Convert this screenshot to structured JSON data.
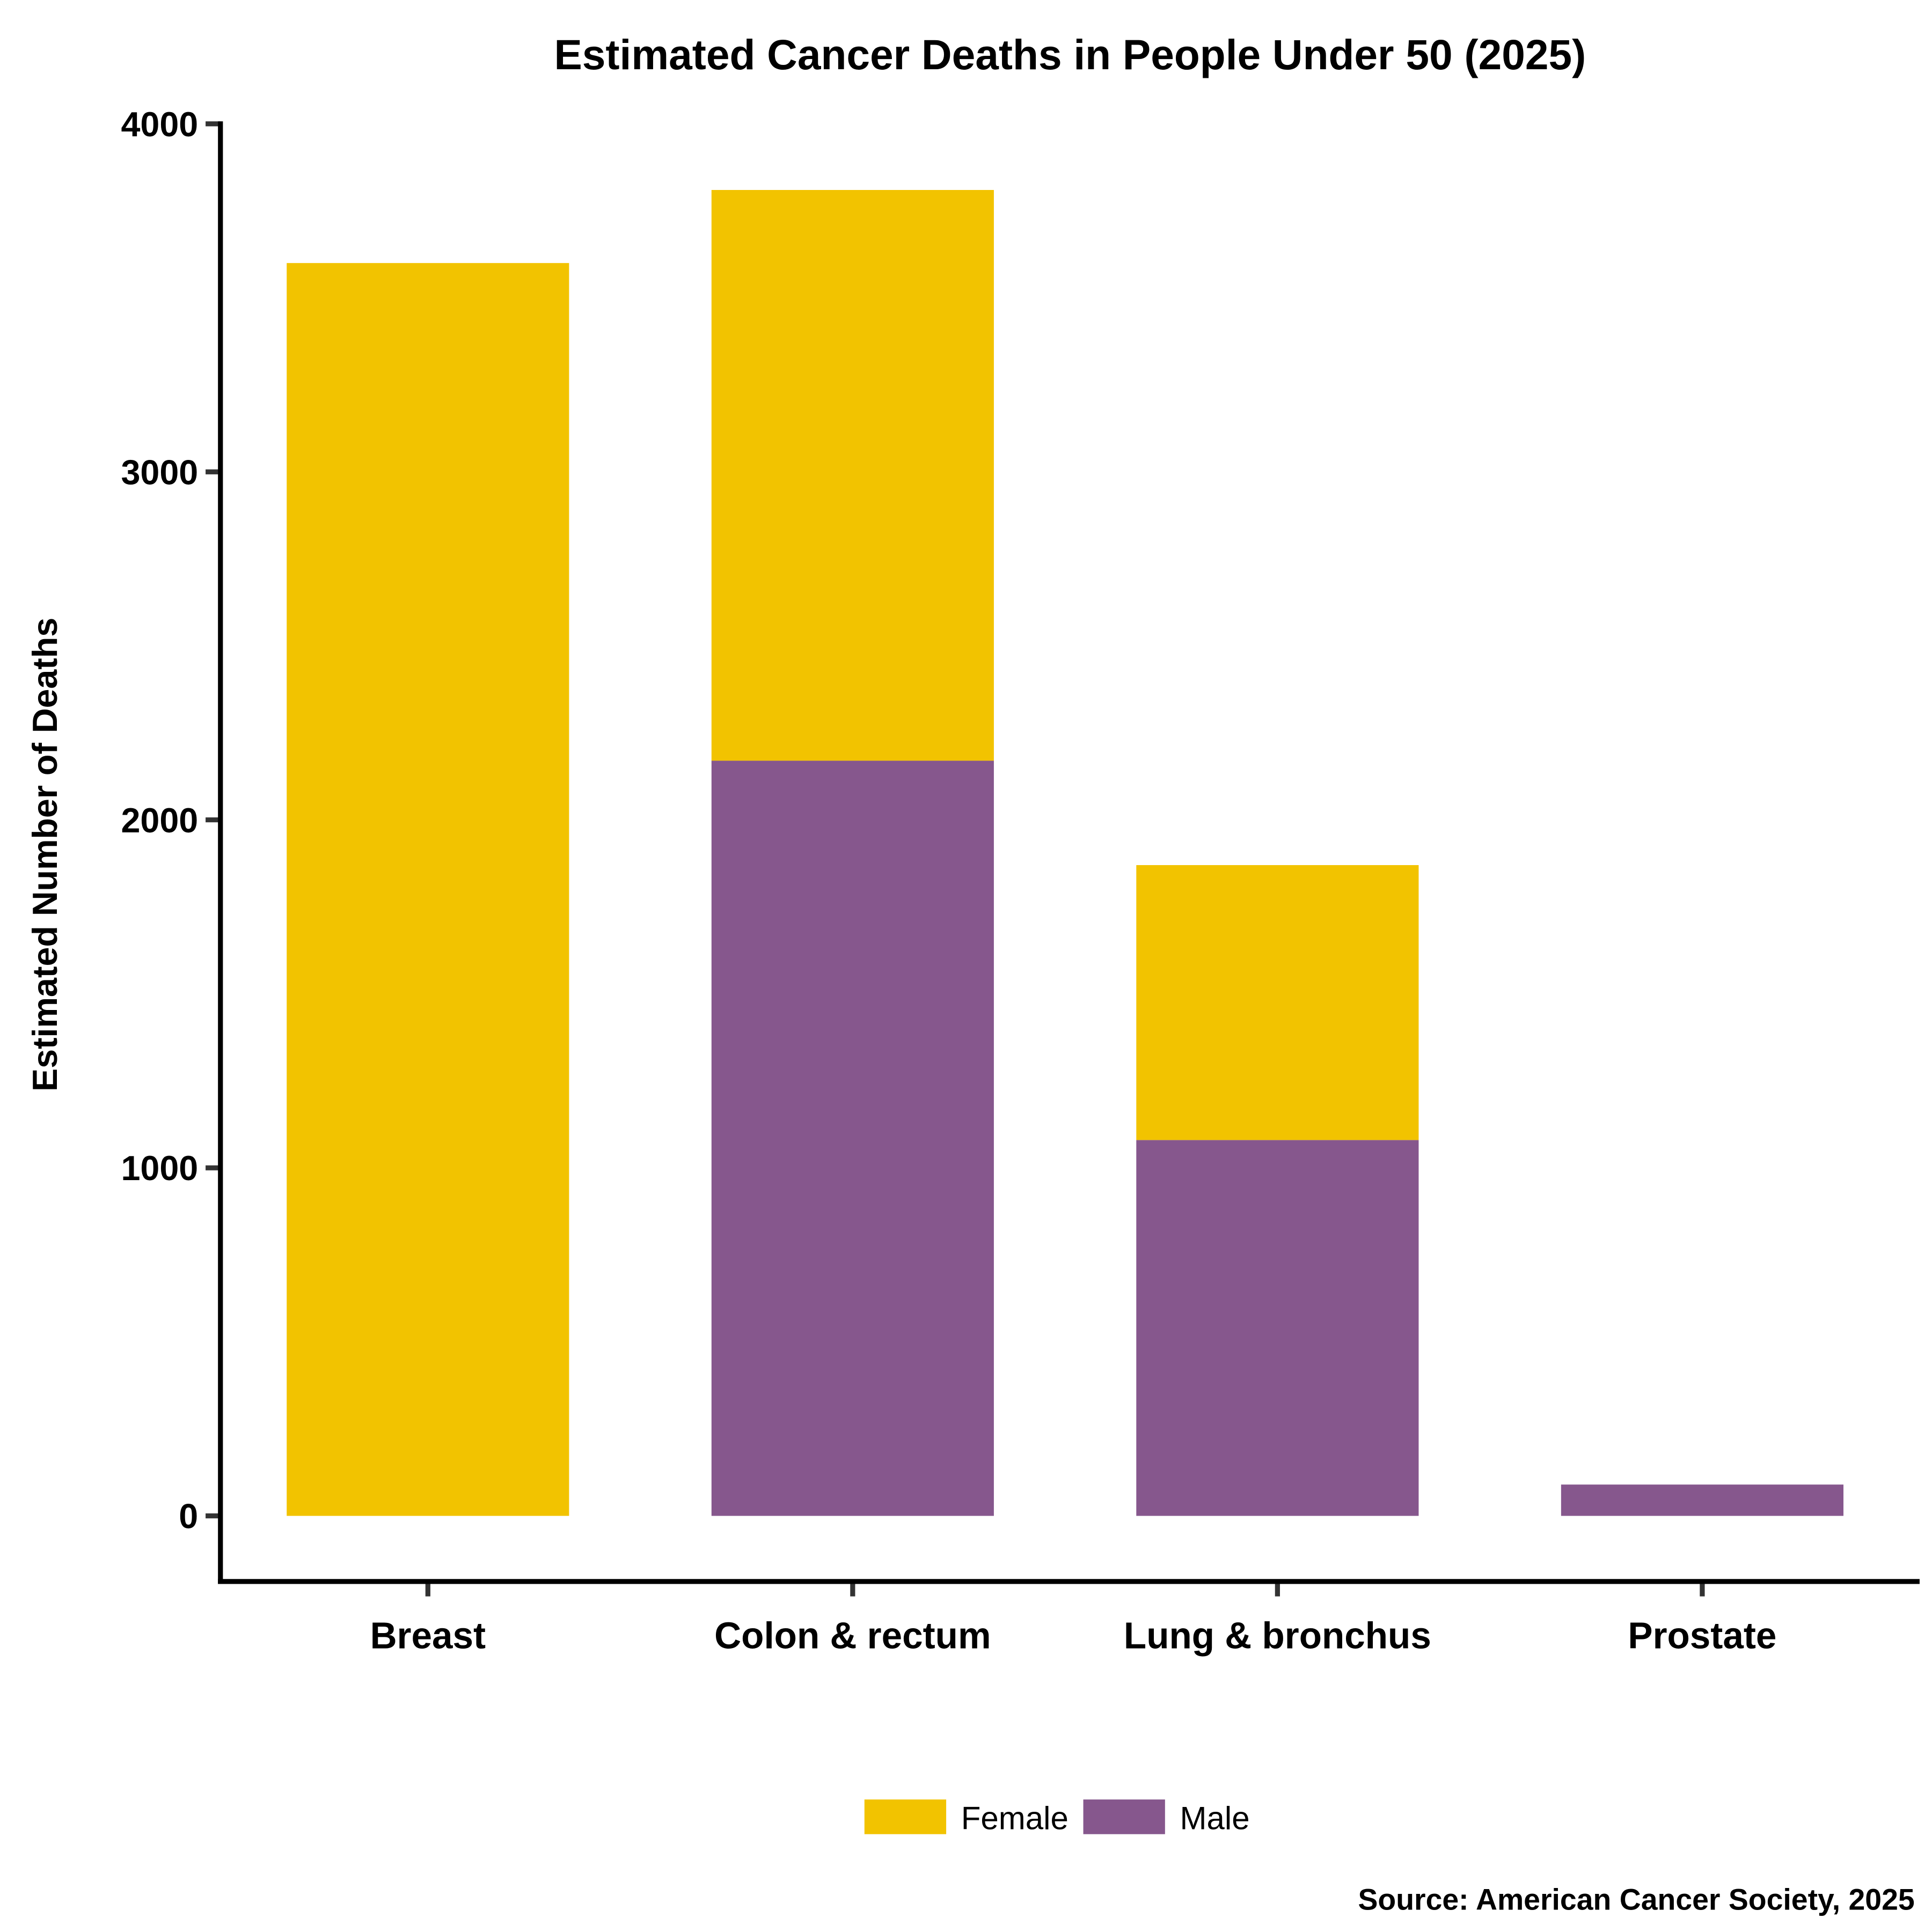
{
  "chart_data": {
    "type": "bar",
    "stacked": true,
    "title": "Estimated Cancer Deaths in People Under 50 (2025)",
    "xlabel": "",
    "ylabel": "Estimated Number of Deaths",
    "ylim": [
      -190,
      4000
    ],
    "yticks": [
      "0",
      "1000",
      "2000",
      "3000",
      "4000"
    ],
    "categories": [
      "Breast",
      "Colon & rectum",
      "Lung & bronchus",
      "Prostate"
    ],
    "series": [
      {
        "name": "Male",
        "color": "#86578d",
        "values": [
          0,
          2170,
          1080,
          90
        ]
      },
      {
        "name": "Female",
        "color": "#f2c300",
        "values": [
          3600,
          1640,
          790,
          0
        ]
      }
    ],
    "legend": {
      "placement": "bottom",
      "order": [
        "Female",
        "Male"
      ]
    },
    "grid": false,
    "source": "Source: American Cancer Society, 2025"
  }
}
